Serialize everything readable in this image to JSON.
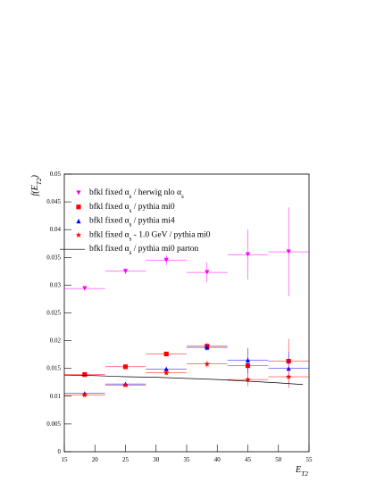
{
  "chart_data": {
    "type": "scatter",
    "xlabel": "E_{T2}",
    "ylabel": "f(E_{T2})",
    "xlim": [
      15,
      55
    ],
    "ylim": [
      0,
      0.05
    ],
    "xticks": [
      15,
      20,
      25,
      30,
      35,
      40,
      45,
      50,
      55
    ],
    "yticks": [
      0,
      0.005,
      0.01,
      0.015,
      0.02,
      0.025,
      0.03,
      0.035,
      0.04,
      0.045,
      0.05
    ],
    "x": [
      18.33,
      25,
      31.67,
      38.33,
      45,
      51.67
    ],
    "x_errors": [
      3.33,
      3.33,
      3.33,
      3.33,
      3.33,
      3.33
    ],
    "series": [
      {
        "name": "bfkl fixed α_{s} / herwig nlo α_{s}",
        "color": "#ff00ff",
        "marker": "triangle-down",
        "values": [
          0.0294,
          0.0325,
          0.0345,
          0.0323,
          0.0355,
          0.036
        ],
        "errors": [
          0.0004,
          0.0005,
          0.0009,
          0.0018,
          0.0045,
          0.008
        ]
      },
      {
        "name": "bfkl fixed α_{s} / pythia mi0",
        "color": "#ff0000",
        "marker": "square",
        "values": [
          0.0139,
          0.0153,
          0.0176,
          0.019,
          0.0155,
          0.0163
        ],
        "errors": [
          0.0002,
          0.0003,
          0.0004,
          0.0006,
          0.0015,
          0.004
        ]
      },
      {
        "name": "bfkl fixed α_{s} / pythia mi4",
        "color": "#0000ff",
        "marker": "triangle-up",
        "values": [
          0.0105,
          0.0122,
          0.0149,
          0.0188,
          0.0165,
          0.015
        ],
        "errors": [
          0.0002,
          0.0003,
          0.0004,
          0.0006,
          0.0022,
          0.003
        ]
      },
      {
        "name": " bfkl fixed α_{s} - 1.0 GeV / pythia mi0",
        "color": "#ff0000",
        "marker": "star",
        "values": [
          0.0102,
          0.012,
          0.0142,
          0.0158,
          0.013,
          0.0135
        ],
        "errors": [
          0.0002,
          0.0003,
          0.0004,
          0.0006,
          0.0012,
          0.002
        ]
      },
      {
        "name": "bfkl fixed α_{s} / pythia mi0 parton",
        "color": "#000000",
        "marker": "line",
        "x": [
          15,
          20,
          25,
          30,
          35,
          40,
          45,
          50,
          54
        ],
        "values": [
          0.0138,
          0.0137,
          0.0135,
          0.0134,
          0.0132,
          0.013,
          0.0127,
          0.0124,
          0.0121
        ]
      }
    ]
  }
}
